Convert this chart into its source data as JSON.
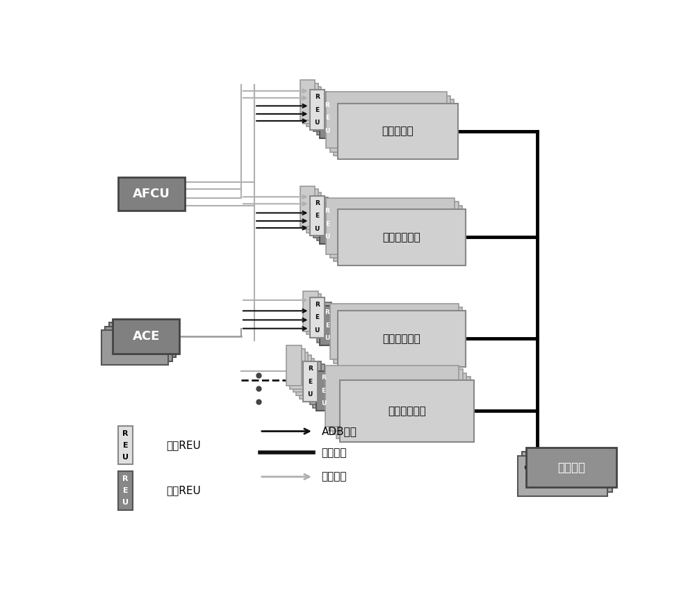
{
  "bg": "#ffffff",
  "afcu_fc": "#808080",
  "afcu_ec": "#444444",
  "afcu_label": "AFCU",
  "ace_fc": "#808080",
  "ace_ec": "#444444",
  "ace_label": "ACE",
  "hyd_fc": "#909090",
  "hyd_ec": "#444444",
  "hyd_label": "液压系统",
  "act_labels": [
    "副翼作动器",
    "升降薈作动器",
    "方向薈作动器",
    "扰流片作动器"
  ],
  "reu1_fc": "#e0e0e0",
  "reu1_ec": "#888888",
  "reu2_fc": "#888888",
  "reu2_ec": "#555555",
  "act_fc": "#d0d0d0",
  "act_ec": "#888888",
  "adb_c": "#111111",
  "hw_c": "#b0b0b0",
  "hyd_line_c": "#000000",
  "leg_type1": "一型REU",
  "leg_type2": "二型REU",
  "leg_adb": "ADB总线",
  "leg_hyd": "液压连接",
  "leg_hw": "硬线连接"
}
